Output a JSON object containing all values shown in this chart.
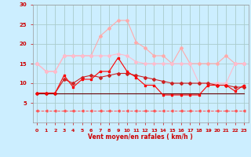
{
  "x": [
    0,
    1,
    2,
    3,
    4,
    5,
    6,
    7,
    8,
    9,
    10,
    11,
    12,
    13,
    14,
    15,
    16,
    17,
    18,
    19,
    20,
    21,
    22,
    23
  ],
  "line1": [
    15.0,
    13.0,
    13.0,
    17.0,
    17.0,
    17.0,
    17.0,
    22.0,
    24.0,
    26.0,
    26.0,
    20.5,
    19.0,
    17.0,
    17.0,
    15.0,
    19.0,
    15.0,
    15.0,
    15.0,
    15.0,
    17.0,
    15.0,
    15.0
  ],
  "line2": [
    15.0,
    13.0,
    13.0,
    17.0,
    17.0,
    17.0,
    17.0,
    17.0,
    17.0,
    17.5,
    17.0,
    15.5,
    15.0,
    15.0,
    15.0,
    15.0,
    15.0,
    15.0,
    10.0,
    10.0,
    10.0,
    10.0,
    15.0,
    15.0
  ],
  "line3": [
    7.5,
    7.5,
    7.5,
    12.0,
    9.0,
    11.0,
    11.0,
    13.0,
    13.0,
    16.5,
    13.0,
    11.5,
    9.5,
    9.5,
    7.0,
    7.0,
    7.0,
    7.0,
    7.0,
    9.5,
    9.5,
    9.5,
    8.0,
    9.5
  ],
  "line4": [
    7.5,
    7.5,
    7.5,
    11.0,
    10.0,
    11.5,
    12.0,
    11.5,
    12.0,
    12.5,
    12.5,
    12.0,
    11.5,
    11.0,
    10.5,
    10.0,
    10.0,
    10.0,
    10.0,
    10.0,
    9.5,
    9.5,
    9.0,
    9.0
  ],
  "line5": [
    7.5,
    7.5,
    7.5,
    7.5,
    7.5,
    7.5,
    7.5,
    7.5,
    7.5,
    7.5,
    7.5,
    7.5,
    7.5,
    7.5,
    7.5,
    7.5,
    7.5,
    7.5,
    7.5,
    7.5,
    7.5,
    7.5,
    7.5,
    7.5
  ],
  "line6": [
    3.0,
    3.0,
    3.0,
    3.0,
    3.0,
    3.0,
    3.0,
    3.0,
    3.0,
    3.0,
    3.0,
    3.0,
    3.0,
    3.0,
    3.0,
    3.0,
    3.0,
    3.0,
    3.0,
    3.0,
    3.0,
    3.0,
    3.0,
    3.0
  ],
  "color1": "#ffaaaa",
  "color2": "#ffbbcc",
  "color3": "#ff0000",
  "color4": "#cc2222",
  "color5": "#660000",
  "color6": "#ff5555",
  "bg_color": "#cceeff",
  "grid_color": "#aacccc",
  "xlabel": "Vent moyen/en rafales ( km/h )",
  "ylim": [
    0,
    30
  ],
  "yticks": [
    5,
    10,
    15,
    20,
    25,
    30
  ],
  "xticks": [
    0,
    1,
    2,
    3,
    4,
    5,
    6,
    7,
    8,
    9,
    10,
    11,
    12,
    13,
    14,
    15,
    16,
    17,
    18,
    19,
    20,
    21,
    22,
    23
  ]
}
